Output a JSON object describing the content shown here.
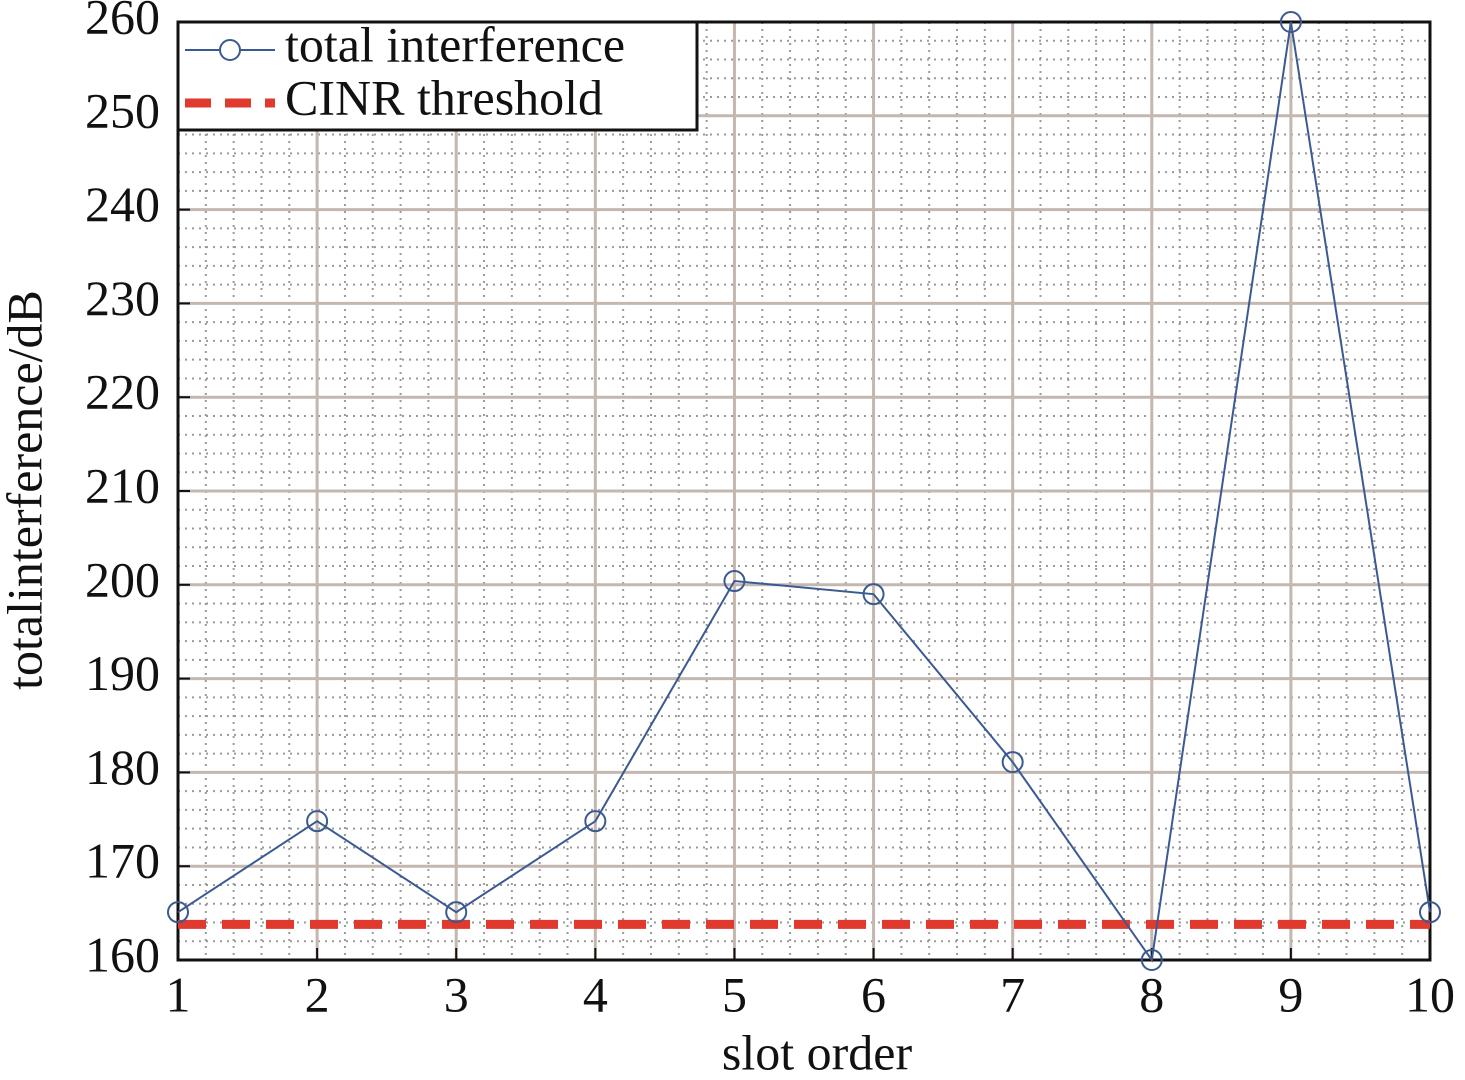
{
  "chart_data": {
    "type": "line",
    "x_label": "slot order",
    "y_label": "totalinterference/dB",
    "x": [
      1,
      2,
      3,
      4,
      5,
      6,
      7,
      8,
      9,
      10
    ],
    "series": [
      {
        "name": "total interference",
        "color": "#3b5a92",
        "marker": "circle",
        "values": [
          165.1,
          174.8,
          165.1,
          174.8,
          200.4,
          199.0,
          181.1,
          160.0,
          260.0,
          165.1
        ]
      }
    ],
    "hlines": [
      {
        "name": "CINR threshold",
        "color": "#e0392e",
        "dash": true,
        "value": 163.8
      }
    ],
    "xlim": [
      1,
      10
    ],
    "xticks": [
      1,
      2,
      3,
      4,
      5,
      6,
      7,
      8,
      9,
      10
    ],
    "ylim": [
      160,
      260
    ],
    "yticks": [
      160,
      170,
      180,
      190,
      200,
      210,
      220,
      230,
      240,
      250,
      260
    ],
    "grid": true,
    "minor_grid": true,
    "legend": "upper left"
  }
}
